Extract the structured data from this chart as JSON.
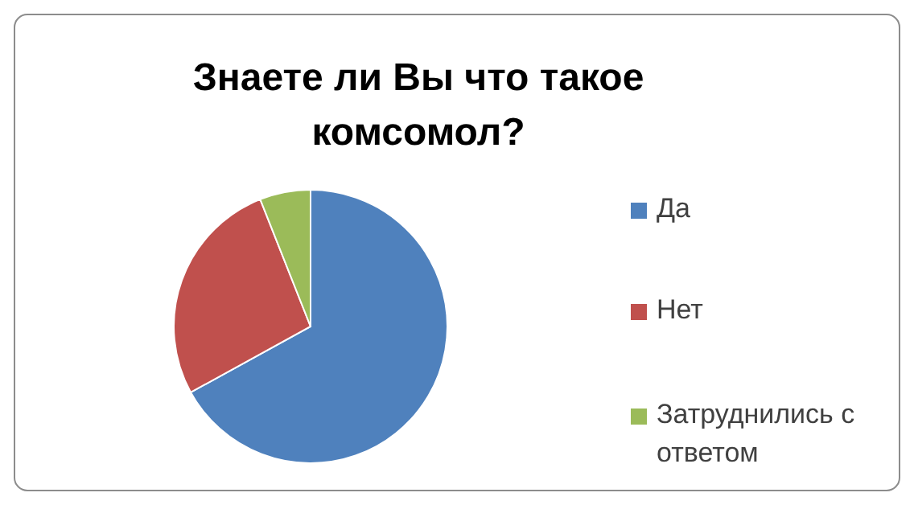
{
  "chart_data": {
    "type": "pie",
    "title": "Знаете ли Вы что такое комсомол?",
    "categories": [
      "Да",
      "Нет",
      "Затруднились с ответом"
    ],
    "values": [
      67,
      27,
      6
    ],
    "colors": [
      "#4f81bd",
      "#c0504d",
      "#9bbb59"
    ],
    "legend": "right"
  }
}
